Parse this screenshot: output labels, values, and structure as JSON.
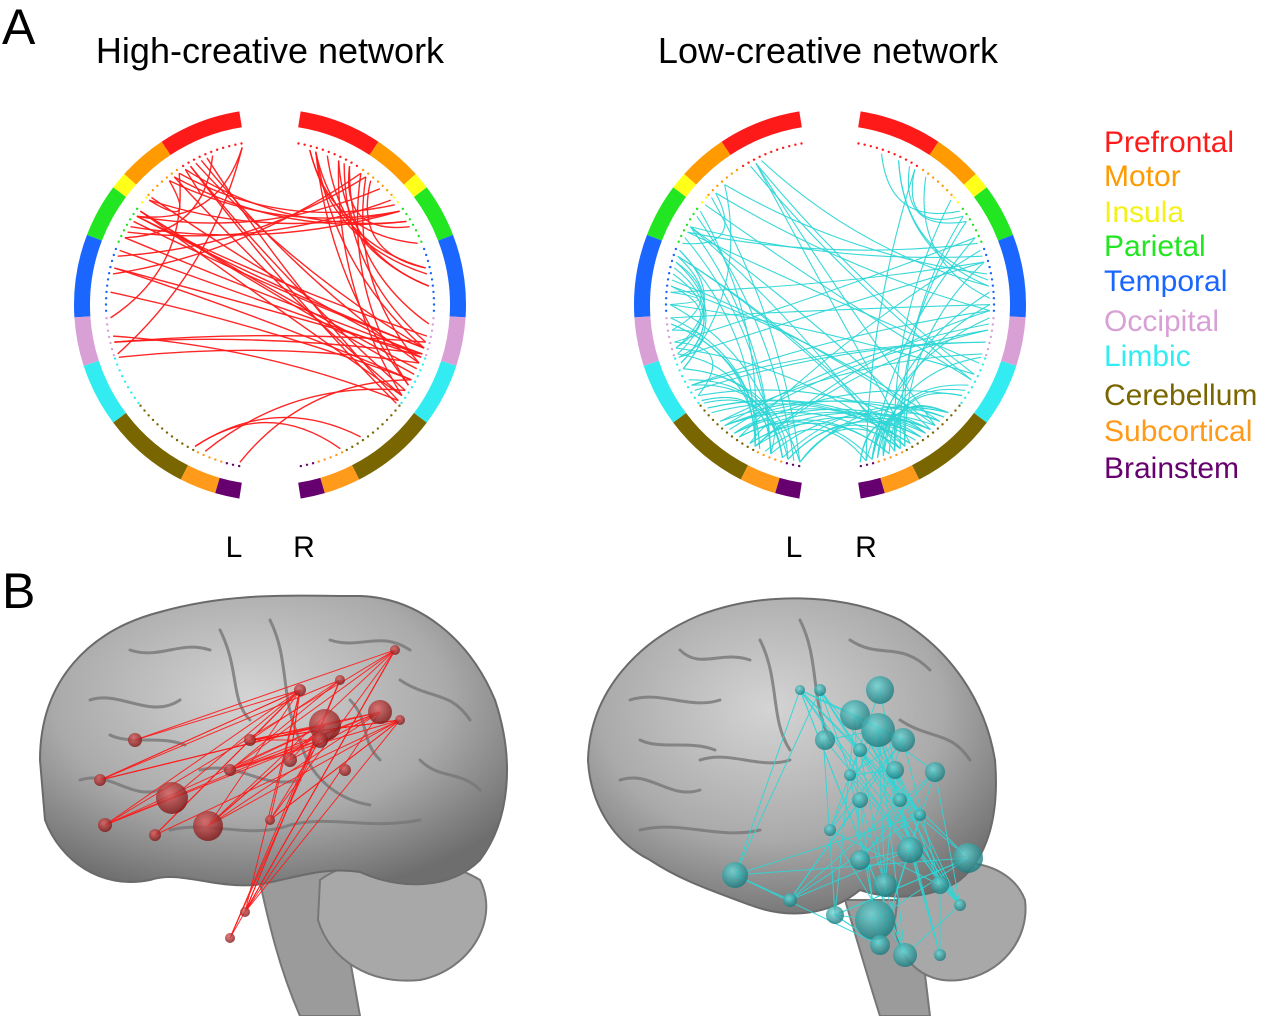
{
  "panel_labels": {
    "a": "A",
    "b": "B"
  },
  "networks": [
    {
      "id": "high",
      "title": "High-creative network",
      "line_color": "#ff1a1a"
    },
    {
      "id": "low",
      "title": "Low-creative network",
      "line_color": "#2fd6d6"
    }
  ],
  "hemispheres": {
    "left": "L",
    "right": "R"
  },
  "regions": [
    {
      "name": "Prefrontal",
      "color": "#ff1a1a"
    },
    {
      "name": "Motor",
      "color": "#ff9a00"
    },
    {
      "name": "Insula",
      "color": "#ffff1a"
    },
    {
      "name": "Parietal",
      "color": "#22e622"
    },
    {
      "name": "Temporal",
      "color": "#1a66ff"
    },
    {
      "name": "Occipital",
      "color": "#d9a0d6"
    },
    {
      "name": "Limbic",
      "color": "#33ecf2"
    },
    {
      "name": "Cerebellum",
      "color": "#7a6600"
    },
    {
      "name": "Subcortical",
      "color": "#ff9a1a"
    },
    {
      "name": "Brainstem",
      "color": "#66006e"
    }
  ]
}
